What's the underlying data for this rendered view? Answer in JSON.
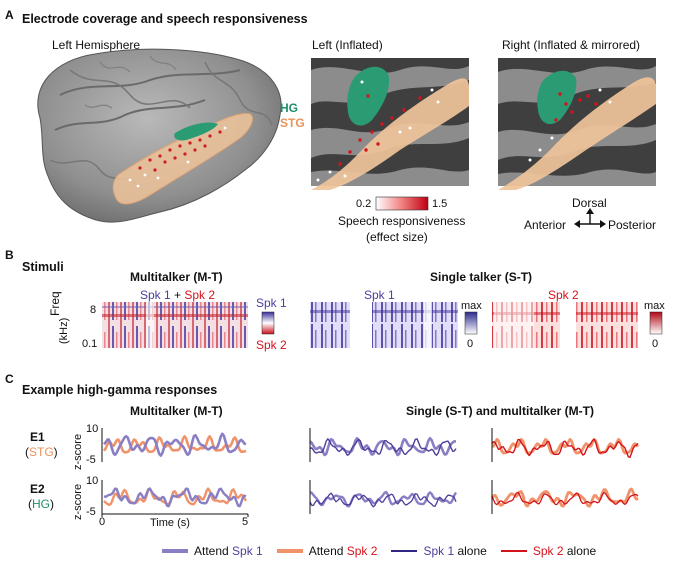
{
  "panelA": {
    "letter": "A",
    "title": "Electrode coverage and speech responsiveness",
    "left_hemisphere": "Left Hemisphere",
    "left_inflated": "Left (Inflated)",
    "right_inflated": "Right (Inflated & mirrored)",
    "hg_label": "HG",
    "stg_label": "STG",
    "colorbar": {
      "min": "0.2",
      "max": "1.5",
      "label1": "Speech responsiveness",
      "label2": "(effect size)"
    },
    "compass": {
      "dorsal": "Dorsal",
      "anterior": "Anterior",
      "posterior": "Posterior"
    }
  },
  "panelB": {
    "letter": "B",
    "title": "Stimuli",
    "multi_title": "Multitalker (M-T)",
    "single_title": "Single talker (S-T)",
    "spk_mix_1": "Spk 1",
    "spk_mix_plus": " + ",
    "spk_mix_2": "Spk 2",
    "spk1": "Spk 1",
    "spk2": "Spk 2",
    "freq_label": "Freq",
    "freq_unit": "(kHz)",
    "freq_top": "8",
    "freq_bot": "0.1",
    "cb_spk1": "Spk 1",
    "cb_spk2": "Spk 2",
    "max1": "max",
    "zero1": "0",
    "max2": "max",
    "zero2": "0"
  },
  "panelC": {
    "letter": "C",
    "title": "Example high-gamma responses",
    "multi_title": "Multitalker (M-T)",
    "single_title": "Single (S-T) and multitalker (M-T)",
    "e1": "E1",
    "e1_region": "STG",
    "e2": "E2",
    "e2_region": "HG",
    "ylabel": "z-score",
    "ytick_top": "10",
    "ytick_bot": "-5",
    "ytick_top2": "10",
    "ytick_bot2": "-5",
    "xtick_0": "0",
    "xtick_5": "5",
    "xlabel": "Time (s)",
    "legend": {
      "attend": "Attend ",
      "attend2": "Attend ",
      "spk1": "Spk 1",
      "spk2": "Spk 2",
      "spk1_alone": "Spk 1",
      "spk2_alone": "Spk 2",
      "alone": " alone",
      "alone2": " alone"
    }
  },
  "colors": {
    "spk1": "#4b3f9b",
    "spk1_light": "#8a7fc4",
    "spk2": "#d4141c",
    "spk2_light": "#f0926a",
    "hg": "#1f8f68",
    "stg": "#e8945a",
    "brain": "#9d9d9d",
    "brain_dark": "#4a4a4a"
  }
}
